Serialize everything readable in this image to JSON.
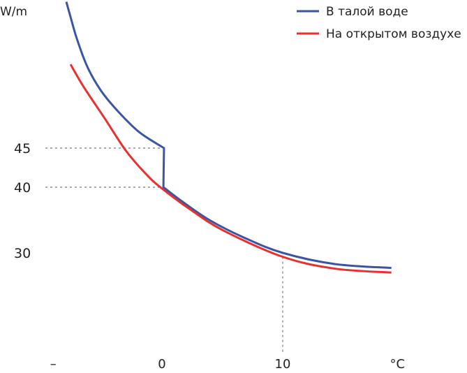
{
  "chart_data": {
    "type": "line",
    "ylabel": "W/m",
    "xlabel": "°C",
    "x_ticks": [
      {
        "label": "–",
        "value": -9
      },
      {
        "label": "0",
        "value": 0
      },
      {
        "label": "10",
        "value": 10
      },
      {
        "label": "°C",
        "value": 19.5
      }
    ],
    "y_ticks": [
      {
        "label": "45",
        "value": 45
      },
      {
        "label": "40",
        "value": 40
      },
      {
        "label": "30",
        "value": 30
      }
    ],
    "legend_position": "top-right",
    "series": [
      {
        "name": "В талой воде",
        "color": "#3a55a4",
        "x": [
          -7.92,
          -7.63,
          -7.05,
          -6.18,
          -5.03,
          -3.58,
          -1.85,
          0.17,
          0.12,
          1.62,
          3.93,
          6.82,
          10.0,
          14.3,
          19.0
        ],
        "y": [
          63.7,
          62.1,
          59.0,
          55.4,
          52.3,
          49.6,
          47.0,
          45,
          40,
          37.9,
          35.0,
          32.3,
          30.0,
          28.3,
          27.7
        ]
      },
      {
        "name": "На открытом воздухе",
        "color": "#e8312f",
        "x": [
          -7.57,
          -6.47,
          -4.74,
          -3.0,
          -1.27,
          0,
          2.2,
          5.09,
          10.0,
          14.3,
          19.0
        ],
        "y": [
          55.7,
          52.8,
          48.8,
          44.7,
          41.6,
          39.8,
          36.8,
          33.4,
          29.4,
          27.6,
          27.0
        ]
      }
    ],
    "guides": [
      {
        "axis": "y",
        "value": 45
      },
      {
        "axis": "y",
        "value": 40
      },
      {
        "axis": "x",
        "value": 10
      }
    ]
  }
}
